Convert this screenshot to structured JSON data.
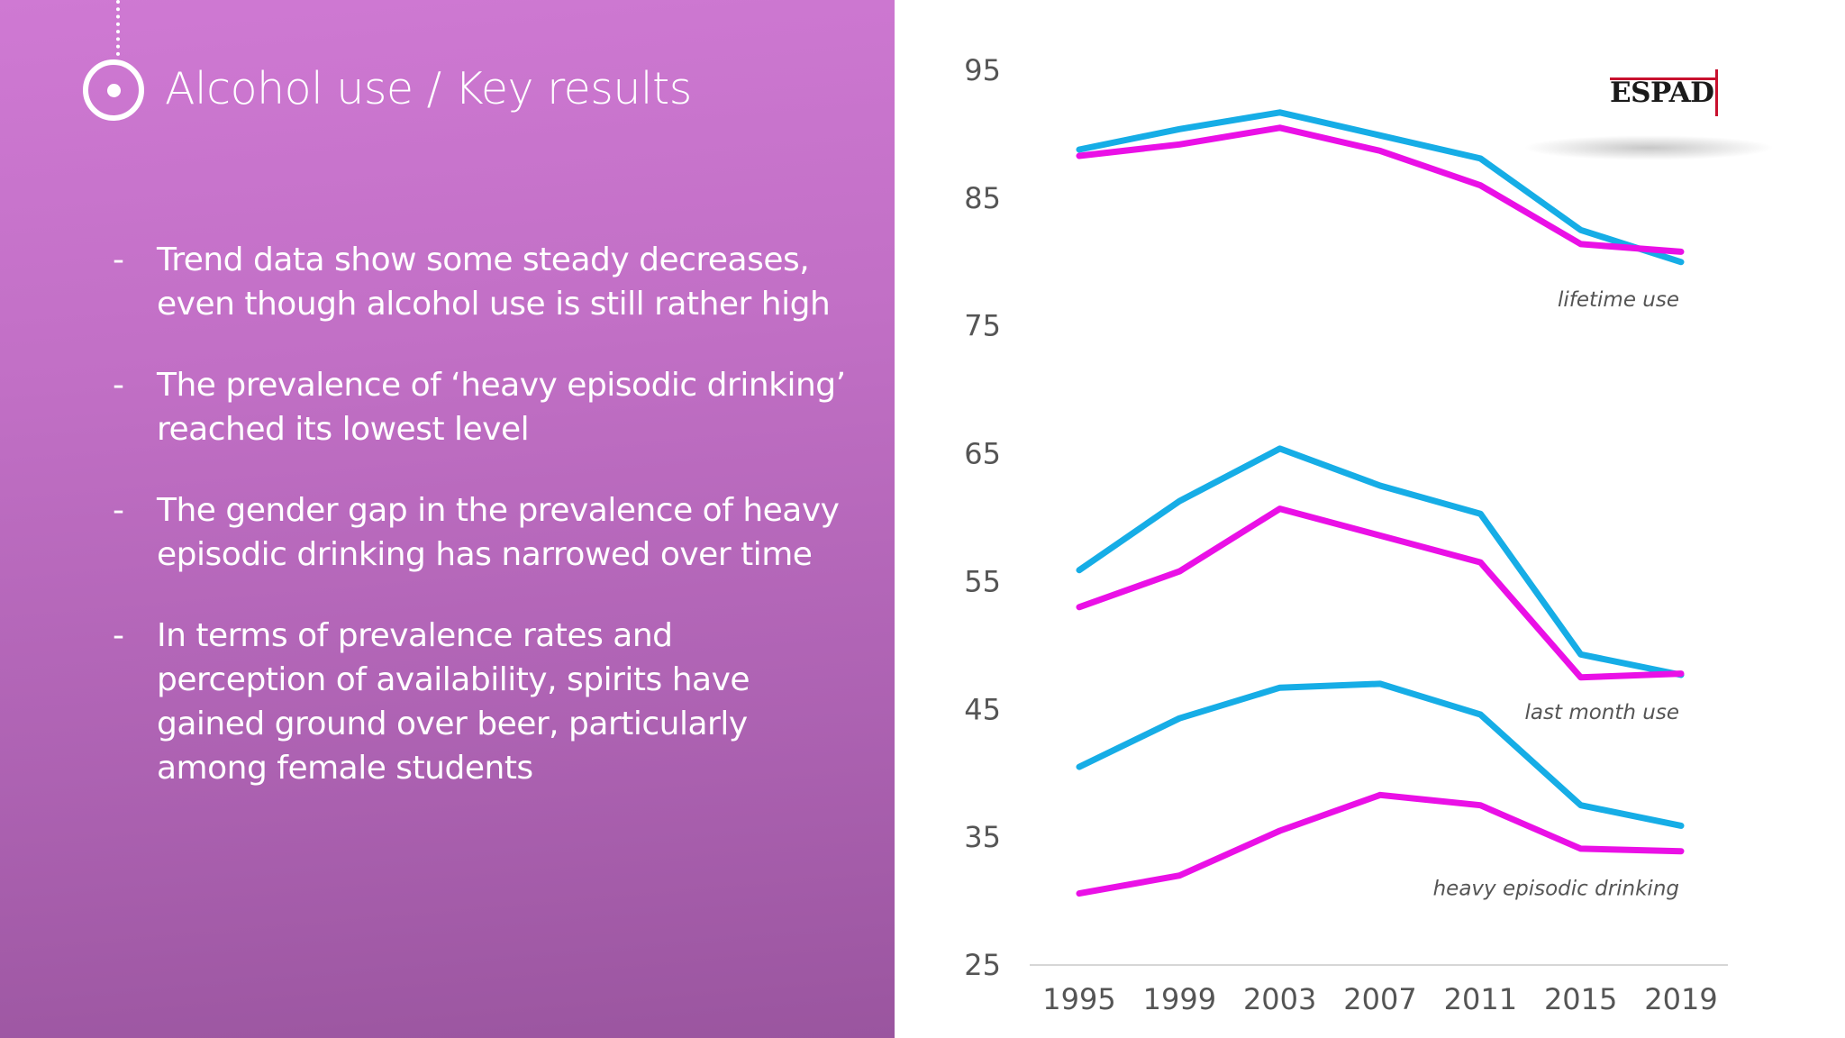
{
  "slide": {
    "title": "Alcohol use / Key results",
    "bullet_marker": "-",
    "bullets": [
      "Trend data show some steady decreases, even though alcohol use is still rather high",
      "The prevalence of ‘heavy episodic drinking’ reached its lowest level",
      "The gender gap in the prevalence of heavy episodic drinking has narrowed over time",
      "In terms of prevalence rates and perception of availability, spirits have gained ground over beer, particularly among female students"
    ],
    "logo_text": "ESPAD"
  },
  "colors": {
    "panel_top": "#cf79d3",
    "panel_bottom": "#9a559f",
    "series_blue": "#16ade6",
    "series_magenta": "#ea10e6",
    "logo_accent": "#c8102e"
  },
  "chart_data": {
    "type": "line",
    "x": [
      "1995",
      "1999",
      "2003",
      "2007",
      "2011",
      "2015",
      "2019"
    ],
    "ylim": [
      25,
      95
    ],
    "yticks": [
      95,
      85,
      75,
      65,
      55,
      45,
      35,
      25
    ],
    "grid": false,
    "xlabel": "",
    "ylabel": "",
    "groups": [
      {
        "label": "lifetime use",
        "series": [
          {
            "color": "#16ade6",
            "values": [
              88.8,
              90.4,
              91.7,
              89.9,
              88.1,
              82.5,
              80.0
            ]
          },
          {
            "color": "#ea10e6",
            "values": [
              88.3,
              89.2,
              90.5,
              88.7,
              86.0,
              81.4,
              80.8
            ]
          }
        ]
      },
      {
        "label": "last month use",
        "series": [
          {
            "color": "#16ade6",
            "values": [
              55.9,
              61.3,
              65.4,
              62.5,
              60.3,
              49.3,
              47.7
            ]
          },
          {
            "color": "#ea10e6",
            "values": [
              53.0,
              55.8,
              60.7,
              58.6,
              56.5,
              47.5,
              47.8
            ]
          }
        ]
      },
      {
        "label": "heavy episodic drinking",
        "series": [
          {
            "color": "#16ade6",
            "values": [
              40.5,
              44.3,
              46.7,
              47.0,
              44.6,
              37.5,
              35.9
            ]
          },
          {
            "color": "#ea10e6",
            "values": [
              30.6,
              32.0,
              35.5,
              38.3,
              37.5,
              34.1,
              33.9
            ]
          }
        ]
      }
    ]
  }
}
